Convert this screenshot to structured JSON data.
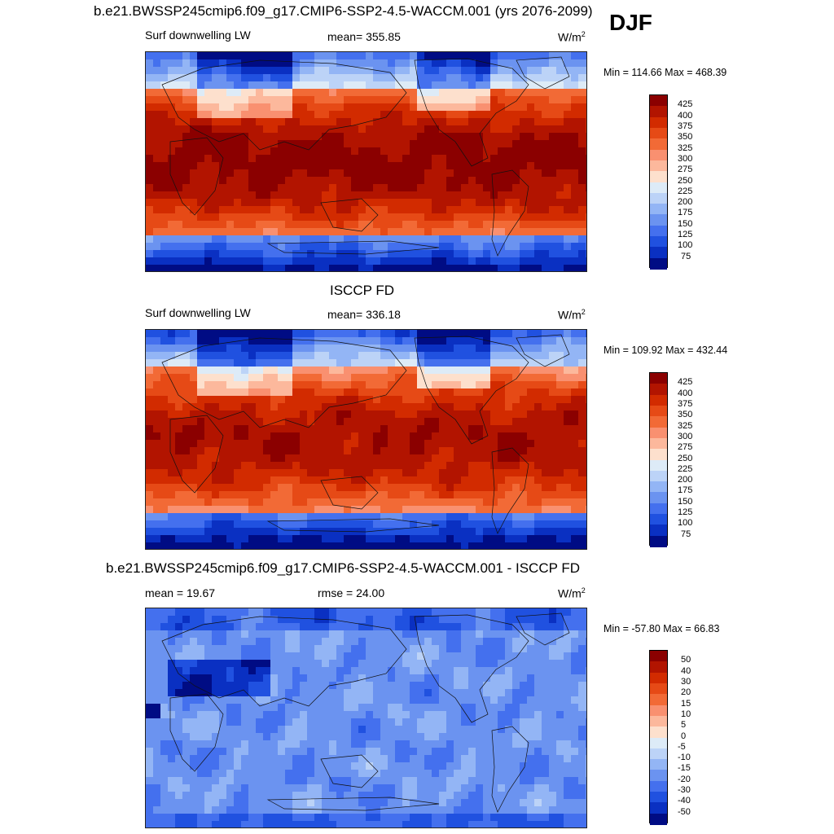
{
  "season": "DJF",
  "panels": [
    {
      "id": "model",
      "title": "b.e21.BWSSP245cmip6.f09_g17.CMIP6-SSP2-4.5-WACCM.001 (yrs 2076-2099)",
      "left_label": "Surf downwelling LW",
      "center_label": "mean= 355.85",
      "units": "W/m",
      "units_sup": "2",
      "minmax": "Min = 114.66 Max = 468.39",
      "field_type": "absolute",
      "colorbar": {
        "labels": [
          "425",
          "400",
          "375",
          "350",
          "325",
          "300",
          "275",
          "250",
          "225",
          "200",
          "175",
          "150",
          "125",
          "100",
          "75"
        ],
        "colors": [
          "#8b0000",
          "#b21400",
          "#d22b00",
          "#e64a16",
          "#f26a36",
          "#f99070",
          "#fcb89c",
          "#fde0cd",
          "#ddebf7",
          "#bcd3f7",
          "#93b5f5",
          "#6b93f0",
          "#4470ee",
          "#2051e0",
          "#0a30c2",
          "#000c84"
        ]
      }
    },
    {
      "id": "obs",
      "title": "ISCCP FD",
      "left_label": "Surf downwelling LW",
      "center_label": "mean= 336.18",
      "units": "W/m",
      "units_sup": "2",
      "minmax": "Min = 109.92 Max = 432.44",
      "field_type": "absolute",
      "colorbar": {
        "labels": [
          "425",
          "400",
          "375",
          "350",
          "325",
          "300",
          "275",
          "250",
          "225",
          "200",
          "175",
          "150",
          "125",
          "100",
          "75"
        ],
        "colors": [
          "#8b0000",
          "#b21400",
          "#d22b00",
          "#e64a16",
          "#f26a36",
          "#f99070",
          "#fcb89c",
          "#fde0cd",
          "#ddebf7",
          "#bcd3f7",
          "#93b5f5",
          "#6b93f0",
          "#4470ee",
          "#2051e0",
          "#0a30c2",
          "#000c84"
        ]
      }
    },
    {
      "id": "diff",
      "title": "b.e21.BWSSP245cmip6.f09_g17.CMIP6-SSP2-4.5-WACCM.001 - ISCCP FD",
      "left_label": "mean =  19.67",
      "center_label": "rmse =  24.00",
      "units": "W/m",
      "units_sup": "2",
      "minmax": "Min = -57.80 Max =  66.83",
      "field_type": "difference",
      "colorbar": {
        "labels": [
          "50",
          "40",
          "30",
          "20",
          "15",
          "10",
          "5",
          "0",
          "-5",
          "-10",
          "-15",
          "-20",
          "-30",
          "-40",
          "-50"
        ],
        "colors": [
          "#8b0000",
          "#b21400",
          "#d22b00",
          "#e64a16",
          "#f26a36",
          "#f99070",
          "#fcb89c",
          "#fde0cd",
          "#ddebf7",
          "#bcd3f7",
          "#93b5f5",
          "#6b93f0",
          "#4470ee",
          "#2051e0",
          "#0a30c2",
          "#000c84"
        ]
      }
    }
  ]
}
